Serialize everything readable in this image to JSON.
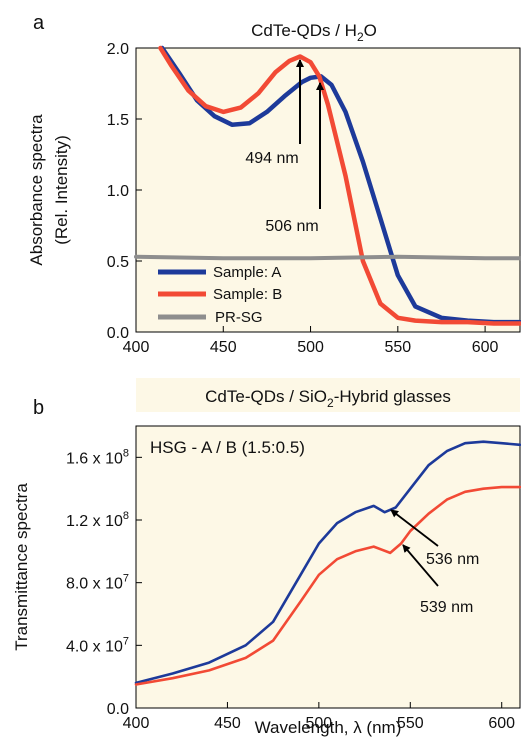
{
  "panel_a": {
    "label": "a",
    "title_pre": "CdTe-QDs / H",
    "title_sub": "2",
    "title_post": "O",
    "ylabel_line1": "Absorbance spectra",
    "ylabel_line2": "(Rel. Intensity)",
    "annotations": [
      "494 nm",
      "506 nm"
    ],
    "legend": [
      "Sample: A",
      "Sample: B",
      "PR-SG"
    ]
  },
  "panel_b": {
    "label": "b",
    "title_pre": "CdTe-QDs / SiO",
    "title_sub": "2",
    "title_post": "-Hybrid glasses",
    "inset": "HSG - A / B (1.5:0.5)",
    "ylabel": "Transmittance spectra",
    "annotations": [
      "536 nm",
      "539 nm"
    ],
    "xlabel": "Wavelength, λ (nm)"
  },
  "colors": {
    "background": "#fdf8e6",
    "sample_a": "#1d3a9a",
    "sample_b": "#f24a35",
    "pr_sg": "#8e8e8e"
  },
  "chart_data": [
    {
      "type": "line",
      "title": "CdTe-QDs / H2O",
      "xlabel": "",
      "ylabel": "Absorbance spectra (Rel. Intensity)",
      "xlim": [
        400,
        620
      ],
      "ylim": [
        0,
        2.0
      ],
      "xticks": [
        400,
        450,
        500,
        550,
        600
      ],
      "yticks": [
        0.0,
        0.5,
        1.0,
        1.5,
        2.0
      ],
      "xtick_labels": [
        "400",
        "450",
        "500",
        "550",
        "600"
      ],
      "ytick_labels": [
        "0.0",
        "0.5",
        "1.0",
        "1.5",
        "2.0"
      ],
      "grid": false,
      "legend_position": "bottom-left",
      "series": [
        {
          "name": "Sample: A",
          "x": [
            415,
            425,
            435,
            445,
            455,
            465,
            475,
            485,
            495,
            500,
            506,
            512,
            520,
            530,
            540,
            550,
            560,
            575,
            590,
            605,
            620
          ],
          "y": [
            2.0,
            1.82,
            1.63,
            1.52,
            1.46,
            1.47,
            1.55,
            1.66,
            1.76,
            1.79,
            1.8,
            1.74,
            1.55,
            1.2,
            0.8,
            0.4,
            0.18,
            0.1,
            0.08,
            0.07,
            0.07
          ]
        },
        {
          "name": "Sample: B",
          "x": [
            414,
            420,
            430,
            440,
            450,
            460,
            470,
            480,
            488,
            494,
            500,
            505,
            510,
            520,
            530,
            540,
            550,
            560,
            575,
            590,
            605,
            620
          ],
          "y": [
            2.0,
            1.88,
            1.7,
            1.59,
            1.55,
            1.58,
            1.68,
            1.83,
            1.91,
            1.94,
            1.9,
            1.8,
            1.6,
            1.1,
            0.5,
            0.2,
            0.1,
            0.08,
            0.07,
            0.07,
            0.06,
            0.06
          ]
        },
        {
          "name": "PR-SG",
          "x": [
            400,
            450,
            500,
            550,
            600,
            620
          ],
          "y": [
            0.53,
            0.52,
            0.52,
            0.53,
            0.52,
            0.52
          ]
        }
      ]
    },
    {
      "type": "line",
      "title": "CdTe-QDs / SiO2-Hybrid glasses",
      "xlabel": "Wavelength, λ (nm)",
      "ylabel": "Transmittance spectra",
      "xlim": [
        400,
        610
      ],
      "ylim": [
        0,
        180000000.0
      ],
      "xticks": [
        400,
        450,
        500,
        550,
        600
      ],
      "yticks": [
        0,
        40000000.0,
        80000000.0,
        120000000.0,
        160000000.0
      ],
      "xtick_labels": [
        "400",
        "450",
        "500",
        "550",
        "600"
      ],
      "ytick_labels": [
        "0.0",
        "4.0 x 10^7",
        "8.0 x 10^7",
        "1.2 x 10^8",
        "1.6 x 10^8"
      ],
      "grid": false,
      "series": [
        {
          "name": "A",
          "x": [
            400,
            420,
            440,
            460,
            475,
            490,
            500,
            510,
            520,
            530,
            536,
            542,
            550,
            560,
            570,
            580,
            590,
            600,
            610
          ],
          "y": [
            16000000.0,
            22000000.0,
            29000000.0,
            40000000.0,
            55000000.0,
            85000000.0,
            105000000.0,
            118000000.0,
            125000000.0,
            129000000.0,
            125000000.0,
            128000000.0,
            140000000.0,
            155000000.0,
            164000000.0,
            169000000.0,
            170000000.0,
            169000000.0,
            168000000.0
          ]
        },
        {
          "name": "B",
          "x": [
            400,
            420,
            440,
            460,
            475,
            490,
            500,
            510,
            520,
            530,
            539,
            545,
            550,
            560,
            570,
            580,
            590,
            600,
            610
          ],
          "y": [
            15000000.0,
            19000000.0,
            24000000.0,
            32000000.0,
            43000000.0,
            68000000.0,
            85000000.0,
            95000000.0,
            100000000.0,
            103000000.0,
            99000000.0,
            105000000.0,
            113000000.0,
            124000000.0,
            133000000.0,
            138000000.0,
            140000000.0,
            141000000.0,
            141000000.0
          ]
        }
      ]
    }
  ]
}
